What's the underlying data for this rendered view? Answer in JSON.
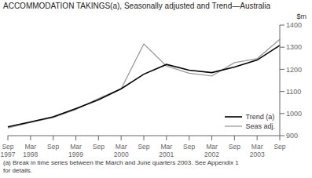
{
  "chart_data": {
    "type": "line",
    "title": "ACCOMMODATION TAKINGS(a), Seasonally adjusted and Trend—Australia",
    "ylabel": "$m",
    "footnote": "(a) Break in time series between the March and June quarters 2003. See Appendix 1\nfor details.",
    "categories": [
      "Sep\n1997",
      "Mar\n1998",
      "Sep",
      "Mar\n1999",
      "Sep",
      "Mar\n2000",
      "Sep",
      "Mar\n2001",
      "Sep",
      "Mar\n2002",
      "Sep",
      "Mar\n2003",
      "Sep"
    ],
    "series": [
      {
        "name": "Trend (a)",
        "color": "#000000",
        "values": [
          940,
          962,
          985,
          1022,
          1062,
          1112,
          1178,
          1222,
          1196,
          1185,
          1210,
          1242,
          1308
        ]
      },
      {
        "name": "Seas adj.",
        "color": "#999999",
        "values": [
          935,
          960,
          982,
          1018,
          1068,
          1112,
          1315,
          1215,
          1182,
          1170,
          1230,
          1248,
          1335
        ]
      }
    ],
    "ylim": [
      900,
      1400
    ],
    "yticks": [
      900,
      1000,
      1100,
      1200,
      1300,
      1400
    ],
    "grid": false,
    "legend": "lower right"
  }
}
